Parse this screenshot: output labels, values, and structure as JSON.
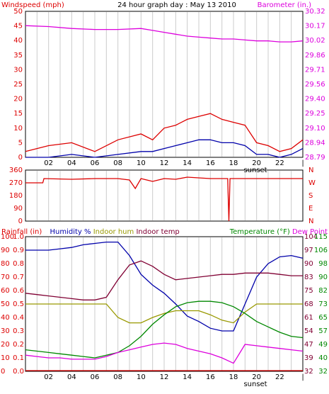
{
  "title": "24 hour graph day : May 13 2010",
  "colors": {
    "background": "#ffffff",
    "grid": "#cccccc",
    "axis": "#000000",
    "red": "#dd0000",
    "blue": "#0000aa",
    "magenta": "#dd00dd",
    "maroon": "#800033",
    "olive": "#999900",
    "green": "#008800"
  },
  "x_ticks": [
    "02",
    "04",
    "06",
    "08",
    "10",
    "12",
    "14",
    "16",
    "18",
    "20",
    "22",
    "|"
  ],
  "sunset_label": "sunset",
  "chart_data": [
    {
      "type": "line",
      "panel": "top",
      "left_label": "Windspeed (mph)",
      "right_label": "Barometer (in.)",
      "left_ticks": [
        "50",
        "45",
        "40",
        "35",
        "30",
        "25",
        "20",
        "15",
        "10",
        "5",
        "0"
      ],
      "right_ticks": [
        "30.32",
        "30.17",
        "30.02",
        "29.86",
        "29.71",
        "29.56",
        "29.40",
        "29.25",
        "29.10",
        "28.94",
        "28.79"
      ],
      "ylim_left": [
        0,
        50
      ],
      "ylim_right": [
        28.79,
        30.32
      ],
      "x": [
        0,
        2,
        4,
        6,
        8,
        10,
        11,
        12,
        13,
        14,
        15,
        16,
        17,
        18,
        19,
        20,
        21,
        22,
        23,
        24
      ],
      "series": [
        {
          "name": "Windspeed (mph)",
          "axis": "left",
          "color": "red",
          "values": [
            2,
            4,
            5,
            2,
            6,
            8,
            6,
            10,
            11,
            13,
            14,
            15,
            13,
            12,
            11,
            5,
            4,
            2,
            3,
            6
          ]
        },
        {
          "name": "",
          "axis": "left",
          "color": "blue",
          "values": [
            0,
            0,
            1,
            0,
            1,
            2,
            2,
            3,
            4,
            5,
            6,
            6,
            5,
            5,
            4,
            1,
            1,
            0,
            1,
            3
          ]
        },
        {
          "name": "Barometer (in.)",
          "axis": "right",
          "color": "magenta",
          "values": [
            30.17,
            30.16,
            30.14,
            30.13,
            30.13,
            30.14,
            30.12,
            30.1,
            30.08,
            30.06,
            30.05,
            30.04,
            30.03,
            30.03,
            30.02,
            30.01,
            30.01,
            30.0,
            30.0,
            30.01
          ]
        }
      ]
    },
    {
      "type": "line",
      "panel": "middle",
      "left_ticks": [
        "360",
        "270",
        "180",
        "90",
        "0"
      ],
      "right_ticks": [
        "N",
        "W",
        "S",
        "E",
        "N"
      ],
      "ylim": [
        0,
        360
      ],
      "series": [
        {
          "name": "",
          "color": "red",
          "x": [
            0,
            1.5,
            1.6,
            4,
            6,
            8,
            9,
            9.5,
            10,
            11,
            12,
            13,
            14,
            16,
            17.5,
            17.6,
            17.7,
            18,
            20,
            22,
            24
          ],
          "values": [
            270,
            270,
            300,
            295,
            300,
            300,
            290,
            230,
            300,
            280,
            300,
            295,
            310,
            300,
            300,
            0,
            300,
            300,
            300,
            300,
            300
          ]
        }
      ]
    },
    {
      "type": "line",
      "panel": "bottom",
      "left_label_parts": [
        {
          "text": "Rainfall (in)",
          "color": "red"
        },
        {
          "text": "Humidity %",
          "color": "blue"
        },
        {
          "text": "Indoor hum",
          "color": "olive"
        },
        {
          "text": "Indoor temp",
          "color": "maroon"
        }
      ],
      "right_label_parts": [
        {
          "text": "Temperature (°F)",
          "color": "green"
        },
        {
          "text": "Dew Point",
          "color": "magenta"
        }
      ],
      "left_ticks_inner": [
        "1.0",
        "0.9",
        "0.8",
        "0.7",
        "0.6",
        "0.5",
        "0.4",
        "0.3",
        "0.2",
        "0.1",
        "0.0"
      ],
      "left_ticks_outer": [
        "100",
        "90",
        "80",
        "70",
        "60",
        "50",
        "40",
        "30",
        "20",
        "10",
        "0"
      ],
      "right_ticks_inner": [
        "104",
        "97",
        "90",
        "83",
        "75",
        "68",
        "61",
        "54",
        "47",
        "39",
        "32"
      ],
      "right_ticks_outer": [
        "115",
        "106",
        "98",
        "90",
        "82",
        "73",
        "65",
        "57",
        "49",
        "40",
        "32"
      ],
      "ylim_left": [
        0,
        100
      ],
      "x": [
        0,
        1,
        2,
        3,
        4,
        5,
        6,
        7,
        8,
        9,
        10,
        11,
        12,
        13,
        14,
        15,
        16,
        17,
        18,
        19,
        20,
        21,
        22,
        23,
        24
      ],
      "series": [
        {
          "name": "Humidity %",
          "color": "blue",
          "values": [
            90,
            90,
            90,
            91,
            92,
            94,
            95,
            96,
            96,
            86,
            72,
            64,
            58,
            50,
            41,
            37,
            32,
            30,
            30,
            50,
            70,
            80,
            85,
            86,
            84
          ]
        },
        {
          "name": "Indoor temp",
          "color": "maroon",
          "values": [
            58,
            57,
            56,
            55,
            54,
            53,
            53,
            55,
            68,
            79,
            82,
            78,
            72,
            68,
            69,
            70,
            71,
            72,
            72,
            73,
            73,
            73,
            72,
            71,
            71
          ]
        },
        {
          "name": "Indoor hum",
          "color": "olive",
          "values": [
            50,
            50,
            50,
            50,
            50,
            50,
            50,
            50,
            40,
            36,
            36,
            40,
            43,
            45,
            45,
            45,
            42,
            38,
            36,
            44,
            50,
            50,
            50,
            50,
            50
          ]
        },
        {
          "name": "Temperature (°F)",
          "color": "green",
          "values": [
            16,
            15,
            14,
            13,
            12,
            11,
            10,
            12,
            14,
            19,
            26,
            35,
            42,
            48,
            51,
            52,
            52,
            51,
            48,
            43,
            37,
            33,
            29,
            26,
            25
          ]
        },
        {
          "name": "Dew Point",
          "color": "magenta",
          "values": [
            12,
            11,
            10,
            10,
            9,
            9,
            9,
            11,
            14,
            16,
            18,
            20,
            21,
            20,
            17,
            15,
            13,
            10,
            6,
            20,
            19,
            18,
            17,
            16,
            15
          ]
        },
        {
          "name": "Rainfall (in)",
          "color": "red",
          "values": [
            0,
            0,
            0,
            0,
            0,
            0,
            0,
            0,
            0,
            0,
            0,
            0,
            0,
            0,
            0,
            0,
            0,
            0,
            0,
            0,
            0,
            0,
            0,
            0,
            0
          ]
        }
      ]
    }
  ]
}
